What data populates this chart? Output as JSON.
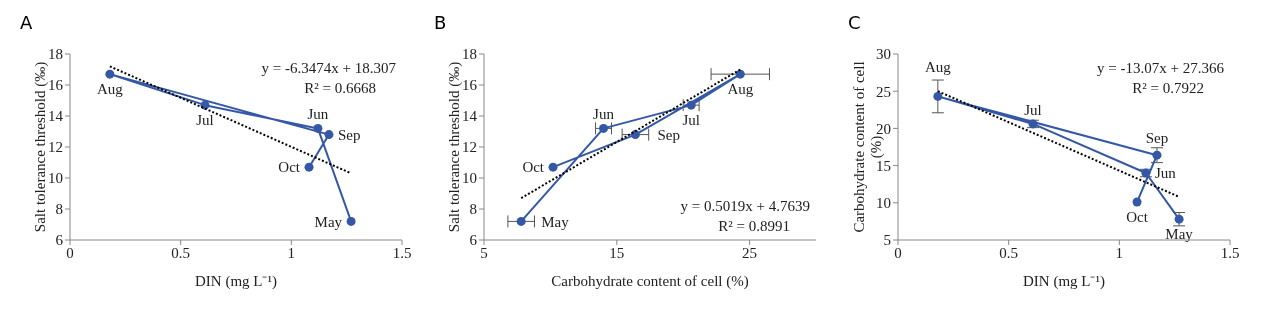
{
  "chart_data": [
    {
      "type": "line",
      "title": "A",
      "xlabel": "DIN (mg L⁻¹)",
      "ylabel": "Salt tolerance threshold (‰)",
      "xlim": [
        0,
        1.5
      ],
      "xticks": [
        0,
        0.5,
        1,
        1.5
      ],
      "ylim": [
        6,
        18
      ],
      "yticks": [
        6,
        8,
        10,
        12,
        14,
        16,
        18
      ],
      "legend": false,
      "series": [
        {
          "color": "#3457a6",
          "marker": "circle",
          "line_style": "solid",
          "x": [
            1.27,
            1.12,
            0.61,
            0.18,
            1.17,
            1.08
          ],
          "values": [
            7.2,
            13.2,
            14.7,
            16.7,
            12.8,
            10.7
          ]
        },
        {
          "type": "line",
          "color": "#000000",
          "marker": "none",
          "line_style": "dotted",
          "x": [
            0.18,
            1.27
          ],
          "values": [
            17.2,
            10.3
          ]
        }
      ],
      "annotations": [
        {
          "text": "May",
          "x": 1.27,
          "y": 7.2
        },
        {
          "text": "Jun",
          "x": 1.12,
          "y": 13.2
        },
        {
          "text": "Jul",
          "x": 0.61,
          "y": 14.7
        },
        {
          "text": "Aug",
          "x": 0.18,
          "y": 16.7
        },
        {
          "text": "Sep",
          "x": 1.17,
          "y": 12.8
        },
        {
          "text": "Oct",
          "x": 1.08,
          "y": 10.7
        },
        "y = -6.3474x + 18.307",
        "R² = 0.6668"
      ]
    },
    {
      "type": "line",
      "title": "B",
      "xlabel": "Carbohydrate content of cell (%)",
      "ylabel": "Salt tolerance threshold (‰)",
      "xlim": [
        5,
        30
      ],
      "xticks": [
        5,
        15,
        25
      ],
      "ylim": [
        6,
        18
      ],
      "yticks": [
        6,
        8,
        10,
        12,
        14,
        16,
        18
      ],
      "legend": false,
      "series": [
        {
          "color": "#3457a6",
          "marker": "circle",
          "line_style": "solid",
          "x": [
            7.8,
            14.0,
            20.6,
            24.3,
            16.4,
            10.2
          ],
          "values": [
            7.2,
            13.2,
            14.7,
            16.7,
            12.8,
            10.7
          ],
          "xerrors": [
            1.0,
            0.6,
            0.6,
            2.2,
            1.0,
            null
          ]
        },
        {
          "type": "line",
          "color": "#000000",
          "marker": "none",
          "line_style": "dotted",
          "x": [
            7.8,
            24.3
          ],
          "values": [
            8.7,
            17.0
          ]
        }
      ],
      "annotations": [
        {
          "text": "May",
          "x": 7.8,
          "y": 7.2
        },
        {
          "text": "Jun",
          "x": 14.0,
          "y": 13.2
        },
        {
          "text": "Jul",
          "x": 20.6,
          "y": 14.7
        },
        {
          "text": "Aug",
          "x": 24.3,
          "y": 16.7
        },
        {
          "text": "Sep",
          "x": 16.4,
          "y": 12.8
        },
        {
          "text": "Oct",
          "x": 10.2,
          "y": 10.7
        },
        "y = 0.5019x + 4.7639",
        "R² = 0.8991"
      ]
    },
    {
      "type": "line",
      "title": "C",
      "xlabel": "DIN (mg L⁻¹)",
      "ylabel": "Carbohydrate content of cell (%)",
      "xlim": [
        0,
        1.5
      ],
      "xticks": [
        0,
        0.5,
        1,
        1.5
      ],
      "ylim": [
        5,
        30
      ],
      "yticks": [
        5,
        10,
        15,
        20,
        25,
        30
      ],
      "legend": false,
      "series": [
        {
          "color": "#3457a6",
          "marker": "circle",
          "line_style": "solid",
          "x": [
            1.27,
            1.12,
            0.61,
            0.18,
            1.17,
            1.08
          ],
          "values": [
            7.8,
            14.0,
            20.6,
            24.3,
            16.4,
            10.1
          ],
          "errors": [
            0.9,
            0.5,
            0.5,
            2.2,
            1.0,
            null
          ]
        },
        {
          "type": "line",
          "color": "#000000",
          "marker": "none",
          "line_style": "dotted",
          "x": [
            0.18,
            1.27
          ],
          "values": [
            25.0,
            10.8
          ]
        }
      ],
      "annotations": [
        {
          "text": "May",
          "x": 1.27,
          "y": 7.8
        },
        {
          "text": "Jun",
          "x": 1.12,
          "y": 14.0
        },
        {
          "text": "Jul",
          "x": 0.61,
          "y": 20.6
        },
        {
          "text": "Aug",
          "x": 0.18,
          "y": 24.3
        },
        {
          "text": "Sep",
          "x": 1.17,
          "y": 16.4
        },
        {
          "text": "Oct",
          "x": 1.08,
          "y": 10.1
        },
        "y = -13.07x + 27.366",
        "R² = 0.7922"
      ]
    }
  ]
}
